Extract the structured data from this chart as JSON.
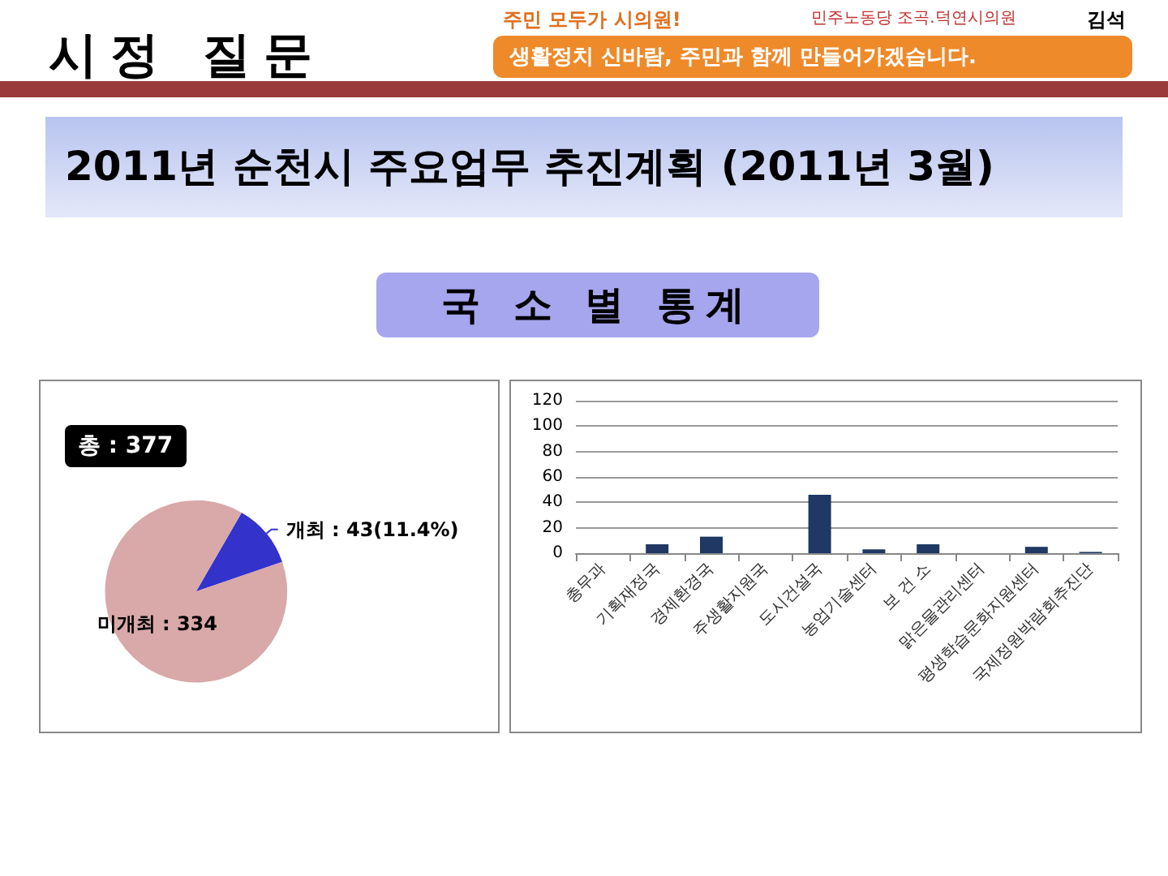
{
  "chart_data": [
    {
      "type": "pie",
      "title": "2011년 순천시 주요업무 추진계획 (2011년 3월)",
      "annotations": [
        "시정 질문",
        "주민 모두가 시의원!",
        "생활정치 신바람, 주민과 함께 만들어가겠습니다.",
        "민주노동당 조곡.덕연시의원",
        "김석",
        "국 소 별 통계",
        "총 : 377"
      ],
      "categories": [
        "개최",
        "미개최"
      ],
      "values": [
        43,
        334
      ],
      "colors": [
        "#3333cc",
        "#d9a8a8"
      ],
      "value_labels": [
        "43(11.4%)",
        "334"
      ],
      "legend": false
    },
    {
      "type": "bar",
      "categories": [
        "총무과",
        "기획재정국",
        "경제환경국",
        "주생활지원국",
        "도시건설국",
        "농업기술센터",
        "보 건 소",
        "맑은물관리센터",
        "평생학습문화지원센터",
        "국제정원박람회추진단"
      ],
      "values": [
        0,
        7,
        13,
        0,
        46,
        3,
        7,
        0,
        5,
        1
      ],
      "color": "#1f3864",
      "ylim": [
        0,
        120
      ],
      "yticks": [
        0,
        20,
        40,
        60,
        80,
        100,
        120
      ],
      "grid": "y",
      "legend": false
    }
  ]
}
